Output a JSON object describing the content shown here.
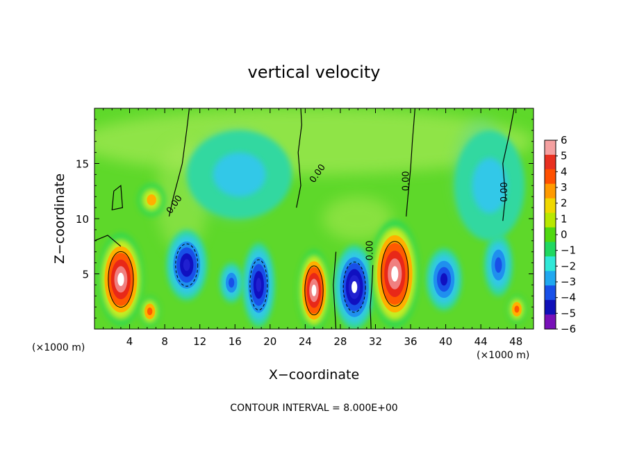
{
  "chart_data": {
    "type": "heatmap",
    "title": "vertical velocity",
    "xlabel": "X−coordinate",
    "ylabel": "Z−coordinate",
    "x_unit": "(×1000 m)",
    "footer": "CONTOUR INTERVAL = 8.000E+00",
    "xlim": [
      0,
      50
    ],
    "ylim": [
      0,
      20
    ],
    "x_ticks": [
      4,
      8,
      12,
      16,
      20,
      24,
      28,
      32,
      36,
      40,
      44,
      48
    ],
    "y_ticks": [
      5,
      10,
      15
    ],
    "colorbar": {
      "min": -6,
      "max": 6,
      "labels": [
        "6",
        "5",
        "4",
        "3",
        "2",
        "1",
        "0",
        "−1",
        "−2",
        "−3",
        "−4",
        "−5",
        "−6"
      ],
      "colors": [
        "#f4a0a0",
        "#e83020",
        "#ff5000",
        "#ff9a00",
        "#f0d800",
        "#b8e800",
        "#50d810",
        "#20d860",
        "#30e8d8",
        "#20a8f0",
        "#1850e8",
        "#1010b8",
        "#7810b8"
      ]
    },
    "contour_labels": [
      "0.00",
      "0.00",
      "0.00",
      "0.00",
      "0.00"
    ],
    "cells": [
      {
        "x": 3,
        "z": 4.5,
        "rx": 2.6,
        "rz": 4.2,
        "value": 12,
        "sign": "updraft"
      },
      {
        "x": 6.3,
        "z": 1.6,
        "rx": 1.2,
        "rz": 1.4,
        "value": 6,
        "sign": "updraft"
      },
      {
        "x": 6.5,
        "z": 11.7,
        "rx": 1.6,
        "rz": 1.5,
        "value": 4,
        "sign": "updraft"
      },
      {
        "x": 10.5,
        "z": 5.8,
        "rx": 2.3,
        "rz": 3.2,
        "value": -9,
        "sign": "downdraft"
      },
      {
        "x": 15.6,
        "z": 4.2,
        "rx": 1.3,
        "rz": 1.8,
        "value": -6,
        "sign": "downdraft"
      },
      {
        "x": 18.7,
        "z": 4.0,
        "rx": 1.8,
        "rz": 3.8,
        "value": -10,
        "sign": "downdraft"
      },
      {
        "x": 25.0,
        "z": 3.5,
        "rx": 1.9,
        "rz": 3.7,
        "value": 11,
        "sign": "updraft"
      },
      {
        "x": 29.6,
        "z": 3.8,
        "rx": 2.3,
        "rz": 3.8,
        "value": -11,
        "sign": "downdraft"
      },
      {
        "x": 34.2,
        "z": 5.0,
        "rx": 2.8,
        "rz": 4.9,
        "value": 13,
        "sign": "updraft"
      },
      {
        "x": 39.8,
        "z": 4.5,
        "rx": 2.0,
        "rz": 2.8,
        "value": -7,
        "sign": "downdraft"
      },
      {
        "x": 46.0,
        "z": 5.8,
        "rx": 1.6,
        "rz": 2.8,
        "value": -6,
        "sign": "downdraft"
      },
      {
        "x": 48.1,
        "z": 1.8,
        "rx": 1.1,
        "rz": 1.3,
        "value": 6,
        "sign": "updraft"
      },
      {
        "x": 16.5,
        "z": 14.0,
        "rx": 6.0,
        "rz": 4.0,
        "value": -2,
        "sign": "downdraft"
      },
      {
        "x": 45.0,
        "z": 13.0,
        "rx": 4.0,
        "rz": 5.0,
        "value": -1.5,
        "sign": "downdraft"
      }
    ]
  }
}
